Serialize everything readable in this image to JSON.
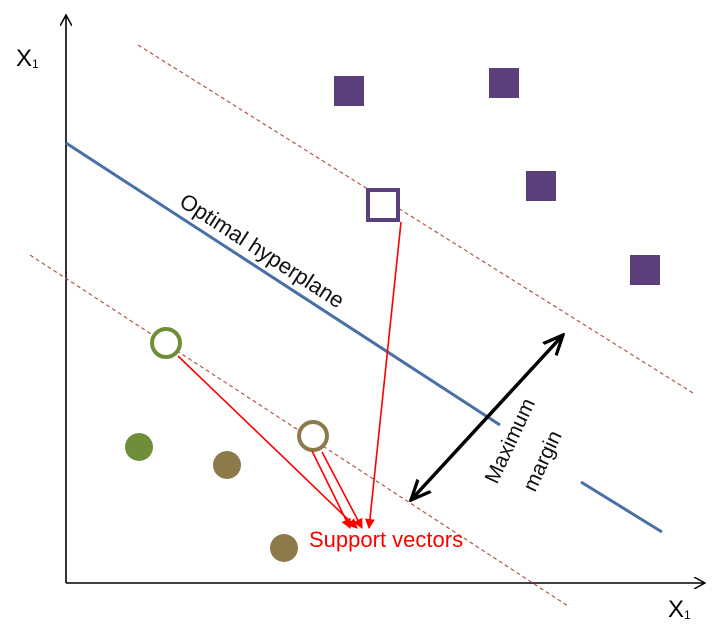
{
  "labels": {
    "y_axis": "X",
    "y_axis_sub": "1",
    "x_axis": "X",
    "x_axis_sub": "1",
    "hyperplane": "Optimal hyperplane",
    "margin_line1": "Maximum",
    "margin_line2": "margin",
    "support_vectors": "Support vectors"
  },
  "colors": {
    "hyperplane": "#4a6fa5",
    "margin_lines": "#b05a4a",
    "square": "#5b3f7a",
    "circle_green": "#6f8e3a",
    "circle_olive": "#8c7a4a",
    "sv_arrows": "#ff0000",
    "axes": "#000000"
  }
}
